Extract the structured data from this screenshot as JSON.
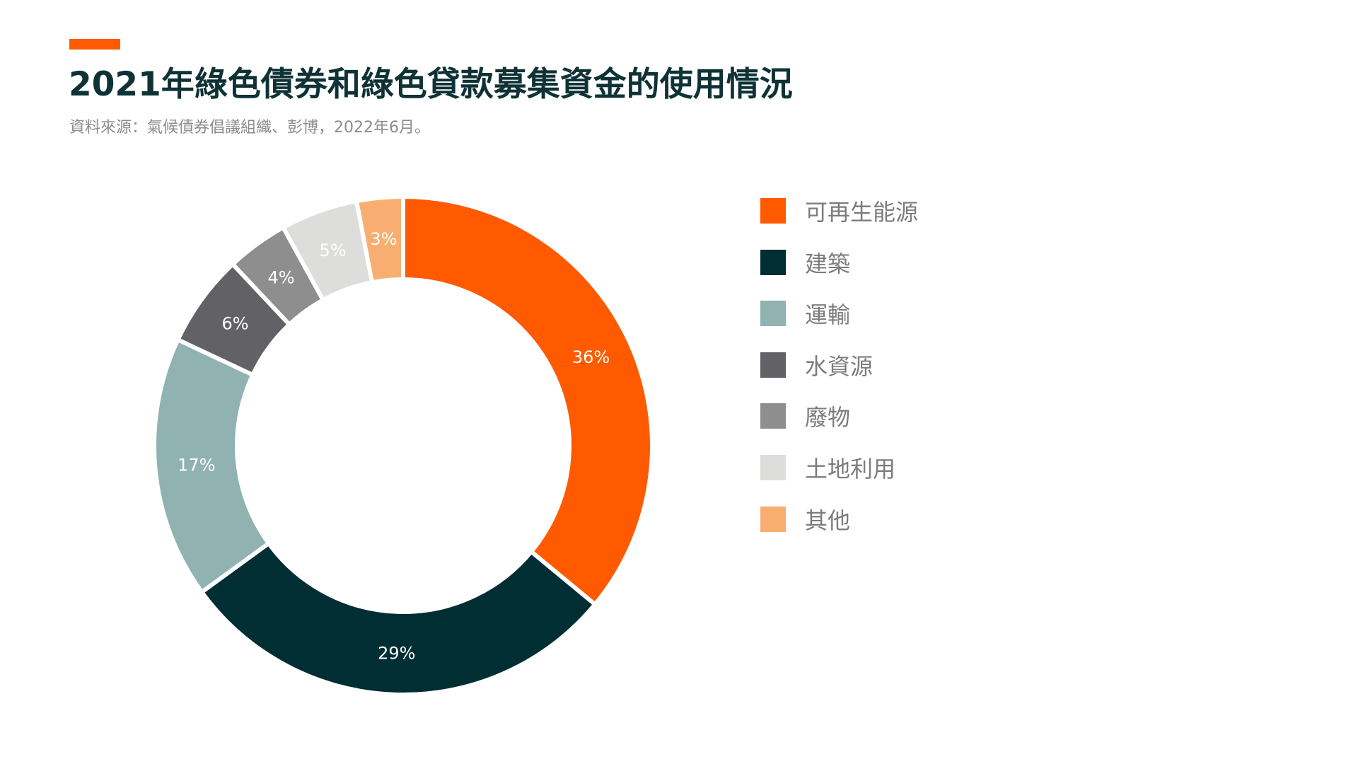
{
  "header": {
    "accent_color": "#ff5a00",
    "title": "2021年綠色債券和綠色貸款募集資金的使用情況",
    "subtitle": "資料來源：氣候債券倡議組織、彭博，2022年6月。"
  },
  "chart_data": {
    "type": "pie",
    "style": "donut",
    "title": "2021年綠色債券和綠色貸款募集資金的使用情況",
    "legend_position": "right",
    "unit": "%",
    "categories": [
      "可再生能源",
      "建築",
      "運輸",
      "水資源",
      "廢物",
      "土地利用",
      "其他"
    ],
    "values": [
      36,
      29,
      17,
      6,
      4,
      5,
      3
    ],
    "data_labels": [
      "36%",
      "29%",
      "17%",
      "6%",
      "4%",
      "5%",
      "3%"
    ],
    "colors": [
      "#ff5a00",
      "#002e33",
      "#90b2b0",
      "#616166",
      "#8e8e8e",
      "#dddddc",
      "#f9ae71"
    ],
    "label_colors": [
      "#ffffff",
      "#ffffff",
      "#ffffff",
      "#ffffff",
      "#ffffff",
      "#ffffff",
      "#ffffff"
    ]
  }
}
